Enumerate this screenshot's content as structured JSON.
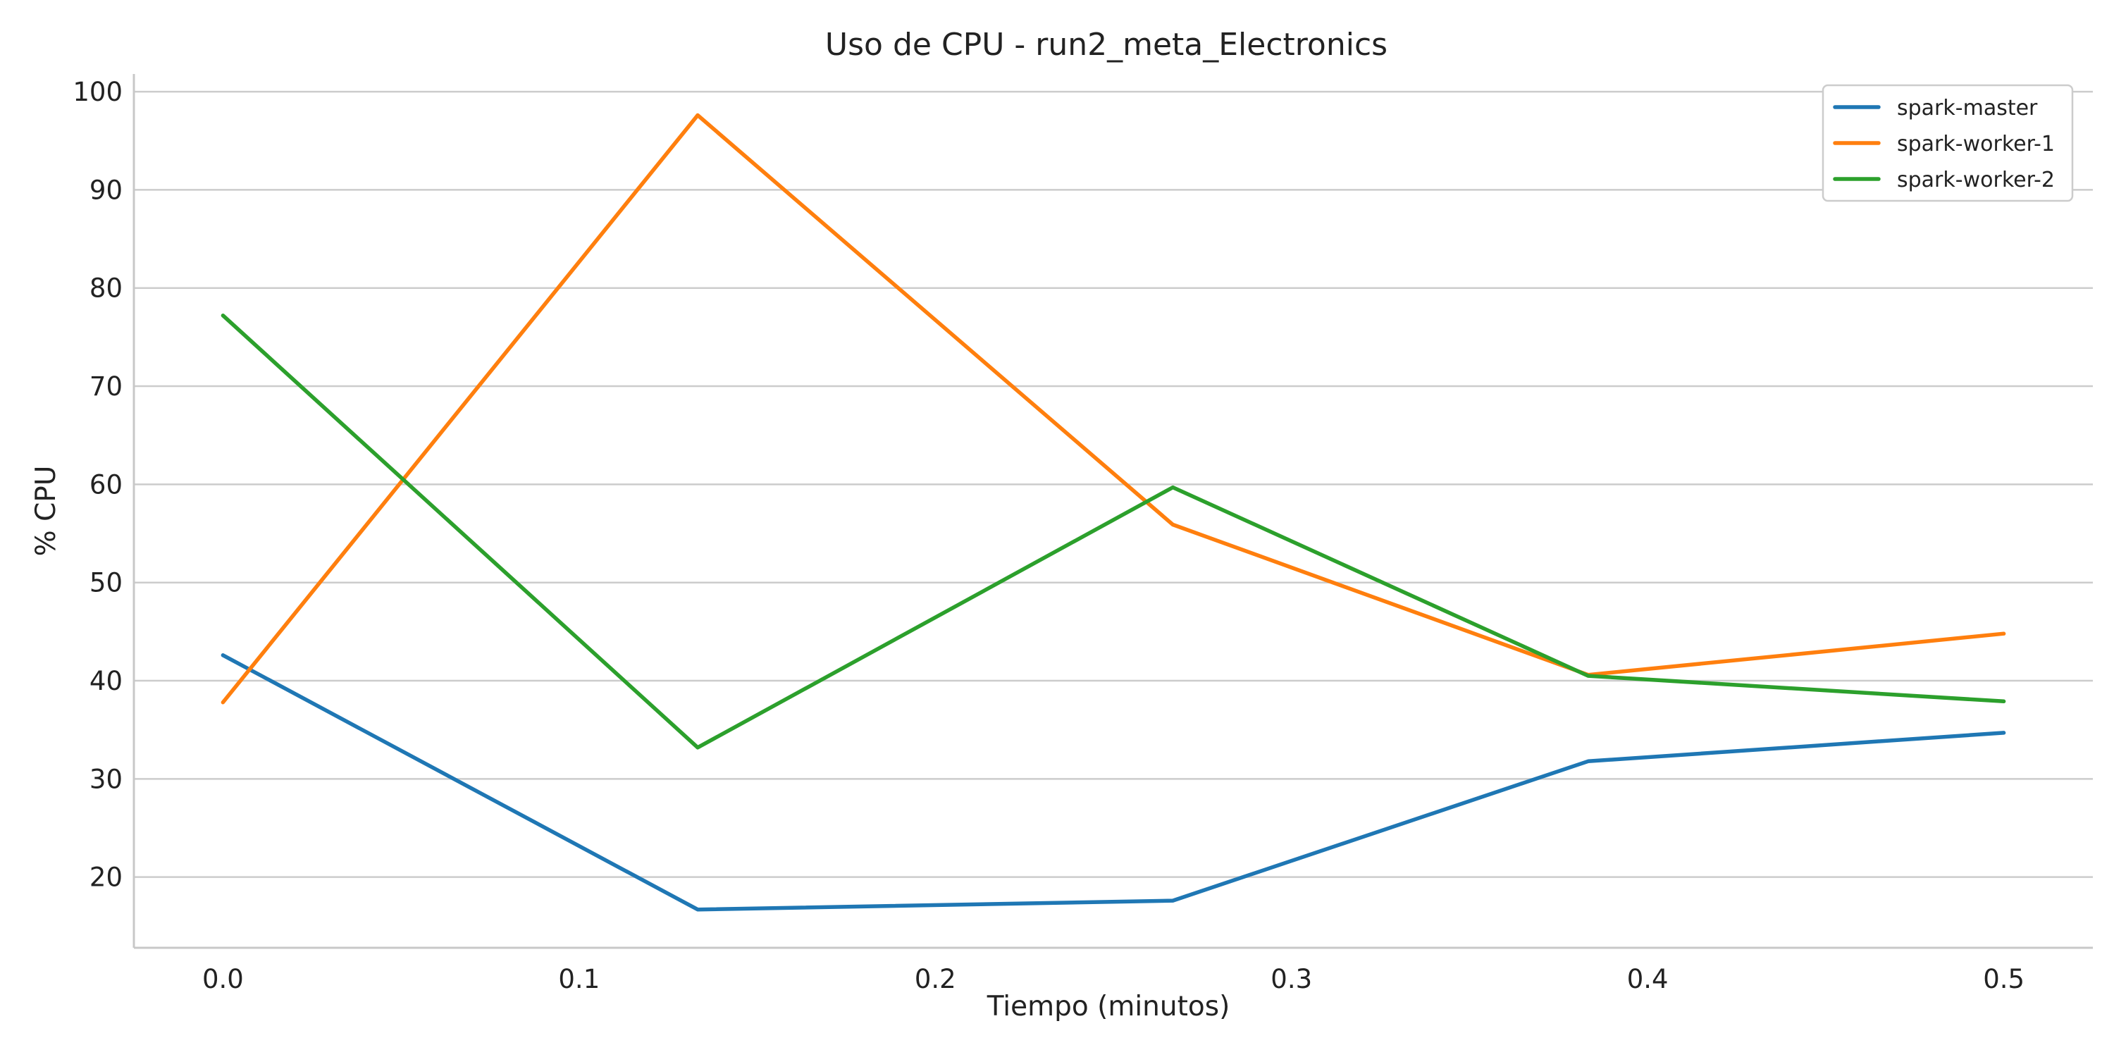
{
  "chart_data": {
    "type": "line",
    "title": "Uso de CPU - run2_meta_Electronics",
    "xlabel": "Tiempo (minutos)",
    "ylabel": "% CPU",
    "x": [
      0.0,
      0.1333,
      0.2667,
      0.3833,
      0.5
    ],
    "xlim": [
      -0.025,
      0.525
    ],
    "ylim": [
      12.8,
      101.8
    ],
    "xticks": [
      0.0,
      0.1,
      0.2,
      0.3,
      0.4,
      0.5
    ],
    "xtick_labels": [
      "0.0",
      "0.1",
      "0.2",
      "0.3",
      "0.4",
      "0.5"
    ],
    "yticks": [
      20,
      30,
      40,
      50,
      60,
      70,
      80,
      90,
      100
    ],
    "ytick_labels": [
      "20",
      "30",
      "40",
      "50",
      "60",
      "70",
      "80",
      "90",
      "100"
    ],
    "grid": "horizontal",
    "legend_position": "top-right",
    "series": [
      {
        "name": "spark-master",
        "color": "#1f77b4",
        "values": [
          42.6,
          16.7,
          17.6,
          31.8,
          34.7
        ]
      },
      {
        "name": "spark-worker-1",
        "color": "#ff7f0e",
        "values": [
          37.8,
          97.6,
          55.9,
          40.6,
          44.8
        ]
      },
      {
        "name": "spark-worker-2",
        "color": "#2ca02c",
        "values": [
          77.2,
          33.2,
          59.7,
          40.5,
          37.9
        ]
      }
    ]
  }
}
